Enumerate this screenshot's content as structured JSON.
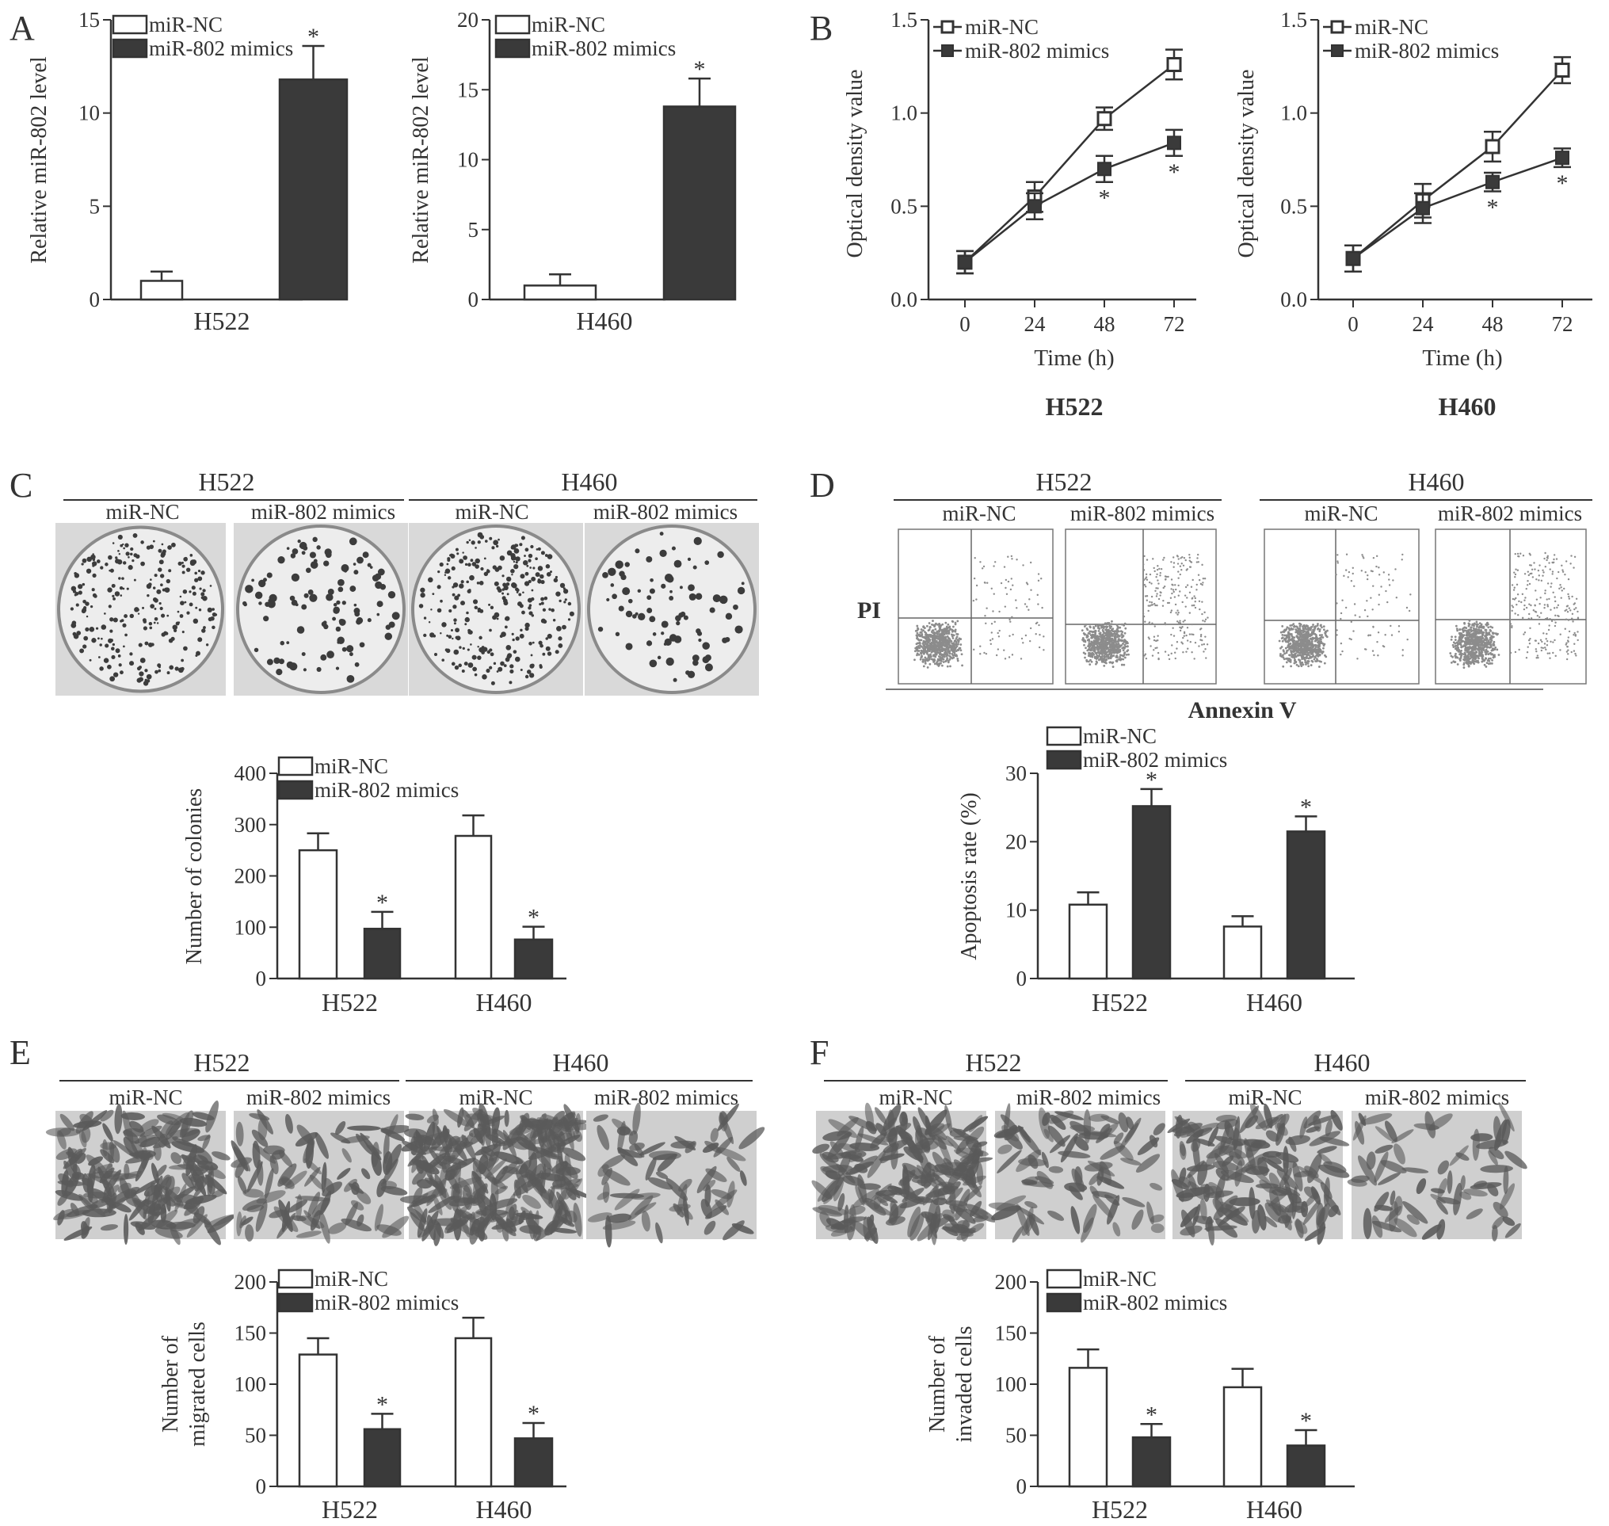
{
  "colors": {
    "control_fill": "#ffffff",
    "mimic_fill": "#3a3a3a",
    "axis": "#333333",
    "photo_bg": "#d9d9d9",
    "colony_dot": "#3c3c3c",
    "flow_dot": "#8c8c8c",
    "cell_stain": "#5a5a5a"
  },
  "legend": {
    "control": "miR-NC",
    "mimic": "miR-802 mimics"
  },
  "star": "*",
  "panels": {
    "A": {
      "letter": "A"
    },
    "B": {
      "letter": "B"
    },
    "C": {
      "letter": "C",
      "groups": [
        {
          "cell": "H522",
          "conditions": [
            "miR-NC",
            "miR-802 mimics"
          ]
        },
        {
          "cell": "H460",
          "conditions": [
            "miR-NC",
            "miR-802 mimics"
          ]
        }
      ],
      "image_note": "colony-formation-dishes"
    },
    "D": {
      "letter": "D",
      "groups": [
        {
          "cell": "H522",
          "conditions": [
            "miR-NC",
            "miR-802 mimics"
          ]
        },
        {
          "cell": "H460",
          "conditions": [
            "miR-NC",
            "miR-802 mimics"
          ]
        }
      ],
      "y_label": "PI",
      "x_label": "Annexin V"
    },
    "E": {
      "letter": "E",
      "groups": [
        {
          "cell": "H522",
          "conditions": [
            "miR-NC",
            "miR-802 mimics"
          ]
        },
        {
          "cell": "H460",
          "conditions": [
            "miR-NC",
            "miR-802 mimics"
          ]
        }
      ]
    },
    "F": {
      "letter": "F",
      "groups": [
        {
          "cell": "H522",
          "conditions": [
            "miR-NC",
            "miR-802 mimics"
          ]
        },
        {
          "cell": "H460",
          "conditions": [
            "miR-NC",
            "miR-802 mimics"
          ]
        }
      ]
    }
  },
  "chart_data": [
    {
      "id": "A1",
      "panel": "A",
      "type": "bar",
      "categories": [
        "H522"
      ],
      "ylabel": "Relative miR-802 level",
      "ylim": [
        0,
        15
      ],
      "yticks": [
        0,
        5,
        10,
        15
      ],
      "series": [
        {
          "name": "miR-NC",
          "values": [
            1.0
          ],
          "errors": [
            0.5
          ],
          "significant": [
            false
          ]
        },
        {
          "name": "miR-802 mimics",
          "values": [
            11.8
          ],
          "errors": [
            1.8
          ],
          "significant": [
            true
          ]
        }
      ],
      "legend_position": "top-left"
    },
    {
      "id": "A2",
      "panel": "A",
      "type": "bar",
      "categories": [
        "H460"
      ],
      "ylabel": "Relative miR-802 level",
      "ylim": [
        0,
        20
      ],
      "yticks": [
        0,
        5,
        10,
        15,
        20
      ],
      "series": [
        {
          "name": "miR-NC",
          "values": [
            1.0
          ],
          "errors": [
            0.8
          ],
          "significant": [
            false
          ]
        },
        {
          "name": "miR-802 mimics",
          "values": [
            13.8
          ],
          "errors": [
            2.0
          ],
          "significant": [
            true
          ]
        }
      ],
      "legend_position": "top-left"
    },
    {
      "id": "B1",
      "panel": "B",
      "type": "line",
      "title": "H522",
      "xlabel": "Time (h)",
      "ylabel": "Optical density value",
      "x": [
        0,
        24,
        48,
        72
      ],
      "ylim": [
        0,
        1.5
      ],
      "yticks": [
        0.0,
        0.5,
        1.0,
        1.5
      ],
      "yticklabels": [
        "0.0",
        "0.5",
        "1.0",
        "1.5"
      ],
      "series": [
        {
          "name": "miR-NC",
          "values": [
            0.2,
            0.55,
            0.97,
            1.26
          ],
          "errors": [
            0.06,
            0.08,
            0.06,
            0.08
          ],
          "significant": [
            false,
            false,
            false,
            false
          ]
        },
        {
          "name": "miR-802 mimics",
          "values": [
            0.2,
            0.5,
            0.7,
            0.84
          ],
          "errors": [
            0.06,
            0.07,
            0.07,
            0.07
          ],
          "significant": [
            false,
            false,
            true,
            true
          ]
        }
      ],
      "legend_position": "top-left"
    },
    {
      "id": "B2",
      "panel": "B",
      "type": "line",
      "title": "H460",
      "xlabel": "Time (h)",
      "ylabel": "Optical density value",
      "x": [
        0,
        24,
        48,
        72
      ],
      "ylim": [
        0,
        1.5
      ],
      "yticks": [
        0.0,
        0.5,
        1.0,
        1.5
      ],
      "yticklabels": [
        "0.0",
        "0.5",
        "1.0",
        "1.5"
      ],
      "series": [
        {
          "name": "miR-NC",
          "values": [
            0.22,
            0.53,
            0.82,
            1.23
          ],
          "errors": [
            0.07,
            0.09,
            0.08,
            0.07
          ],
          "significant": [
            false,
            false,
            false,
            false
          ]
        },
        {
          "name": "miR-802 mimics",
          "values": [
            0.22,
            0.49,
            0.63,
            0.76
          ],
          "errors": [
            0.07,
            0.08,
            0.05,
            0.05
          ],
          "significant": [
            false,
            false,
            true,
            true
          ]
        }
      ],
      "legend_position": "top-left"
    },
    {
      "id": "C",
      "panel": "C",
      "type": "bar",
      "categories": [
        "H522",
        "H460"
      ],
      "ylabel": "Number of colonies",
      "ylim": [
        0,
        400
      ],
      "yticks": [
        0,
        100,
        200,
        300,
        400
      ],
      "series": [
        {
          "name": "miR-NC",
          "values": [
            250,
            278
          ],
          "errors": [
            33,
            40
          ],
          "significant": [
            false,
            false
          ]
        },
        {
          "name": "miR-802 mimics",
          "values": [
            97,
            76
          ],
          "errors": [
            33,
            25
          ],
          "significant": [
            true,
            true
          ]
        }
      ],
      "legend_position": "top-left"
    },
    {
      "id": "D",
      "panel": "D",
      "type": "bar",
      "categories": [
        "H522",
        "H460"
      ],
      "ylabel": "Apoptosis rate (%)",
      "ylim": [
        0,
        30
      ],
      "yticks": [
        0,
        10,
        20,
        30
      ],
      "series": [
        {
          "name": "miR-NC",
          "values": [
            10.8,
            7.6
          ],
          "errors": [
            1.8,
            1.5
          ],
          "significant": [
            false,
            false
          ]
        },
        {
          "name": "miR-802 mimics",
          "values": [
            25.2,
            21.5
          ],
          "errors": [
            2.5,
            2.2
          ],
          "significant": [
            true,
            true
          ]
        }
      ],
      "legend_position": "top-left"
    },
    {
      "id": "E",
      "panel": "E",
      "type": "bar",
      "categories": [
        "H522",
        "H460"
      ],
      "ylabel": [
        "Number of",
        "migrated cells"
      ],
      "ylim": [
        0,
        200
      ],
      "yticks": [
        0,
        50,
        100,
        150,
        200
      ],
      "series": [
        {
          "name": "miR-NC",
          "values": [
            129,
            145
          ],
          "errors": [
            16,
            20
          ],
          "significant": [
            false,
            false
          ]
        },
        {
          "name": "miR-802 mimics",
          "values": [
            56,
            47
          ],
          "errors": [
            15,
            15
          ],
          "significant": [
            true,
            true
          ]
        }
      ],
      "legend_position": "top-left"
    },
    {
      "id": "F",
      "panel": "F",
      "type": "bar",
      "categories": [
        "H522",
        "H460"
      ],
      "ylabel": [
        "Number of",
        "invaded cells"
      ],
      "ylim": [
        0,
        200
      ],
      "yticks": [
        0,
        50,
        100,
        150,
        200
      ],
      "series": [
        {
          "name": "miR-NC",
          "values": [
            116,
            97
          ],
          "errors": [
            18,
            18
          ],
          "significant": [
            false,
            false
          ]
        },
        {
          "name": "miR-802 mimics",
          "values": [
            48,
            40
          ],
          "errors": [
            13,
            15
          ],
          "significant": [
            true,
            true
          ]
        }
      ],
      "legend_position": "top-left"
    }
  ]
}
